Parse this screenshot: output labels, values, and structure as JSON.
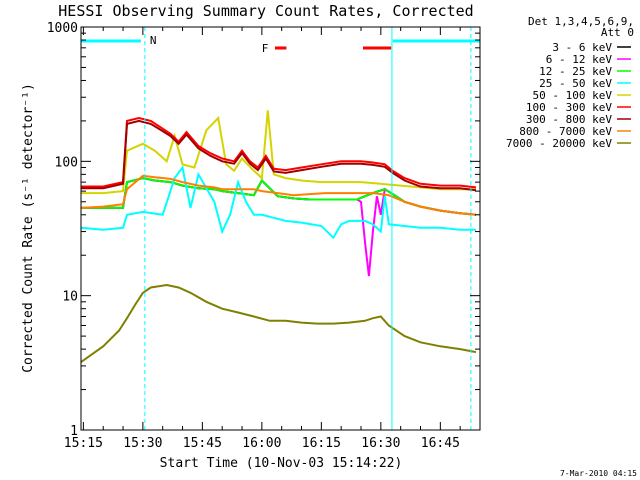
{
  "chart_data": {
    "type": "line",
    "title": "HESSI Observing Summary Count Rates, Corrected",
    "xlabel": "Start Time (10-Nov-03 15:14:22)",
    "ylabel": "Corrected Count Rate (s⁻¹ detector⁻¹)",
    "x_units": "minutes of day",
    "xlim": [
      914.4,
      1015
    ],
    "ylim": [
      1,
      1000
    ],
    "yscale": "log",
    "x_ticks": [
      {
        "label": "15:15",
        "value": 915
      },
      {
        "label": "15:30",
        "value": 930
      },
      {
        "label": "15:45",
        "value": 945
      },
      {
        "label": "16:00",
        "value": 960
      },
      {
        "label": "16:15",
        "value": 975
      },
      {
        "label": "16:30",
        "value": 990
      },
      {
        "label": "16:45",
        "value": 1005
      }
    ],
    "y_ticks": [
      {
        "label": "1",
        "value": 1
      },
      {
        "label": "10",
        "value": 10
      },
      {
        "label": "100",
        "value": 100
      },
      {
        "label": "1000",
        "value": 1000
      }
    ],
    "legend": {
      "header": [
        "Det 1,3,4,5,6,9,",
        "Att 0"
      ],
      "placement": "right"
    },
    "series": [
      {
        "name": "3 - 6 keV",
        "color": "#000000",
        "x": [
          914.4,
          925,
          926,
          930,
          933,
          937,
          940,
          944,
          948,
          950,
          954,
          958,
          960,
          964,
          968,
          972,
          976,
          980,
          984,
          986,
          988,
          989.5,
          991,
          993,
          996,
          1000,
          1005,
          1010,
          1014
        ],
        "y": [
          45,
          45,
          70,
          75,
          72,
          70,
          66,
          63,
          62,
          60,
          58,
          56,
          72,
          55,
          53,
          52,
          52,
          52,
          52,
          55,
          58,
          60,
          62,
          57,
          50,
          46,
          43,
          41,
          40
        ]
      },
      {
        "name": "6 - 12 keV",
        "color": "#ff00ff",
        "x": [
          914.4,
          925,
          926,
          930,
          933,
          937,
          940,
          944,
          948,
          950,
          954,
          958,
          960,
          964,
          968,
          972,
          976,
          980,
          984,
          985,
          986,
          987,
          988,
          989,
          990,
          991,
          993,
          996,
          1000,
          1005,
          1010,
          1014
        ],
        "y": [
          45,
          45,
          70,
          75,
          72,
          70,
          66,
          63,
          62,
          60,
          58,
          56,
          72,
          55,
          53,
          52,
          52,
          52,
          52,
          50,
          25,
          14,
          30,
          55,
          40,
          62,
          57,
          50,
          46,
          43,
          41,
          40
        ]
      },
      {
        "name": "12 - 25 keV",
        "color": "#00ff00",
        "x": [
          914.4,
          925,
          926,
          930,
          933,
          937,
          940,
          944,
          948,
          950,
          954,
          958,
          960,
          964,
          968,
          972,
          976,
          980,
          984,
          986,
          988,
          989.5,
          991,
          993,
          996,
          1000,
          1005,
          1010,
          1014
        ],
        "y": [
          45,
          45,
          70,
          75,
          72,
          70,
          66,
          63,
          62,
          60,
          58,
          56,
          72,
          55,
          53,
          52,
          52,
          52,
          52,
          55,
          58,
          60,
          62,
          57,
          50,
          46,
          43,
          41,
          40
        ]
      },
      {
        "name": "25 - 50 keV",
        "color": "#00ffff",
        "x": [
          914.4,
          920,
          925,
          926,
          930,
          935,
          938,
          940,
          942,
          944,
          948,
          950,
          952,
          954,
          956,
          958,
          960,
          963,
          966,
          970,
          975,
          978,
          980,
          982,
          986,
          988,
          990,
          991,
          992,
          996,
          1000,
          1005,
          1010,
          1014
        ],
        "y": [
          32,
          31,
          32,
          40,
          42,
          40,
          75,
          90,
          45,
          80,
          50,
          30,
          40,
          70,
          50,
          40,
          40,
          38,
          36,
          35,
          33,
          27,
          34,
          36,
          36,
          34,
          30,
          55,
          34,
          33,
          32,
          32,
          31,
          31
        ]
      },
      {
        "name": "50 - 100 keV",
        "color": "#d4d400",
        "x": [
          914.4,
          920,
          925,
          926,
          930,
          933,
          936,
          938,
          940,
          943,
          946,
          949,
          951,
          953,
          955,
          958,
          960,
          961.5,
          963,
          966,
          970,
          975,
          980,
          985,
          990,
          995,
          1000,
          1005,
          1010,
          1014
        ],
        "y": [
          58,
          58,
          60,
          120,
          135,
          120,
          100,
          155,
          95,
          90,
          170,
          210,
          95,
          85,
          105,
          85,
          75,
          240,
          80,
          75,
          72,
          70,
          70,
          70,
          68,
          66,
          64,
          62,
          62,
          62
        ]
      },
      {
        "name": "100 - 300 keV",
        "color": "#ff0000",
        "x": [
          914.4,
          920,
          925,
          926,
          929,
          932,
          935,
          937,
          939,
          941,
          944,
          947,
          950,
          953,
          955,
          957,
          959,
          961,
          963,
          966,
          970,
          975,
          980,
          985,
          988,
          991,
          993,
          996,
          1000,
          1005,
          1010,
          1014
        ],
        "y": [
          65,
          65,
          70,
          200,
          210,
          200,
          175,
          160,
          140,
          165,
          130,
          115,
          105,
          100,
          120,
          100,
          90,
          110,
          88,
          86,
          90,
          95,
          100,
          100,
          98,
          95,
          85,
          75,
          68,
          66,
          66,
          64
        ]
      },
      {
        "name": "300 - 800 keV",
        "color": "#a00000",
        "x": [
          914.4,
          920,
          925,
          926,
          929,
          932,
          935,
          937,
          939,
          941,
          944,
          947,
          950,
          953,
          955,
          957,
          959,
          961,
          963,
          966,
          970,
          975,
          980,
          985,
          988,
          991,
          993,
          996,
          1000,
          1005,
          1010,
          1014
        ],
        "y": [
          63,
          63,
          68,
          190,
          200,
          190,
          168,
          154,
          135,
          158,
          125,
          110,
          100,
          96,
          115,
          96,
          86,
          105,
          84,
          82,
          86,
          91,
          96,
          96,
          94,
          91,
          82,
          72,
          65,
          63,
          63,
          61
        ]
      },
      {
        "name": "800 - 7000 keV",
        "color": "#ff8000",
        "x": [
          914.4,
          920,
          925,
          926,
          930,
          933,
          937,
          940,
          944,
          948,
          950,
          954,
          958,
          960,
          964,
          968,
          972,
          976,
          980,
          984,
          988,
          992,
          996,
          1000,
          1005,
          1010,
          1014
        ],
        "y": [
          45,
          46,
          48,
          62,
          78,
          76,
          74,
          70,
          66,
          64,
          62,
          62,
          62,
          60,
          58,
          56,
          57,
          58,
          58,
          58,
          58,
          56,
          50,
          46,
          43,
          41,
          40
        ]
      },
      {
        "name": "7000 - 20000 keV",
        "color": "#808000",
        "x": [
          914.4,
          920,
          924,
          926,
          928,
          930,
          932,
          936,
          939,
          942,
          946,
          950,
          954,
          958,
          962,
          966,
          970,
          974,
          978,
          982,
          986,
          988,
          990,
          992,
          996,
          1000,
          1005,
          1010,
          1014
        ],
        "y": [
          3.2,
          4.2,
          5.5,
          6.8,
          8.5,
          10.5,
          11.5,
          12,
          11.5,
          10.5,
          9,
          8,
          7.5,
          7,
          6.5,
          6.5,
          6.3,
          6.2,
          6.2,
          6.3,
          6.5,
          6.8,
          7,
          6,
          5,
          4.5,
          4.2,
          4,
          3.8
        ]
      }
    ],
    "annotations": [
      {
        "text": "N",
        "x": 930.5,
        "color": "#00ffff"
      },
      {
        "text": "F",
        "x": 961.5,
        "color": "#ff0000"
      }
    ],
    "footer": "7-Mar-2010 04:15"
  }
}
